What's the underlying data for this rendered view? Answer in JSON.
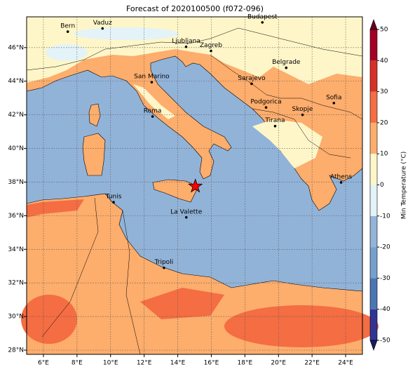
{
  "title": "Forecast of 2020100500 (f072-096)",
  "map": {
    "xlim": [
      5,
      25
    ],
    "ylim": [
      27.75,
      47.83
    ],
    "grid": true,
    "xticks": [
      {
        "value": 6,
        "label": "6°E"
      },
      {
        "value": 8,
        "label": "8°E"
      },
      {
        "value": 10,
        "label": "10°E"
      },
      {
        "value": 12,
        "label": "12°E"
      },
      {
        "value": 14,
        "label": "14°E"
      },
      {
        "value": 16,
        "label": "16°E"
      },
      {
        "value": 18,
        "label": "18°E"
      },
      {
        "value": 20,
        "label": "20°E"
      },
      {
        "value": 22,
        "label": "22°E"
      },
      {
        "value": 24,
        "label": "24°E"
      }
    ],
    "yticks": [
      {
        "value": 28,
        "label": "28°N"
      },
      {
        "value": 30,
        "label": "30°N"
      },
      {
        "value": 32,
        "label": "32°N"
      },
      {
        "value": 34,
        "label": "34°N"
      },
      {
        "value": 36,
        "label": "36°N"
      },
      {
        "value": 38,
        "label": "38°N"
      },
      {
        "value": 40,
        "label": "40°N"
      },
      {
        "value": 42,
        "label": "42°N"
      },
      {
        "value": 44,
        "label": "44°N"
      },
      {
        "value": 46,
        "label": "46°N"
      }
    ]
  },
  "cities": [
    {
      "name": "Bern",
      "lon": 7.45,
      "lat": 46.95
    },
    {
      "name": "Vaduz",
      "lon": 9.52,
      "lat": 47.14
    },
    {
      "name": "Budapest",
      "lon": 19.04,
      "lat": 47.5
    },
    {
      "name": "Ljubljana",
      "lon": 14.5,
      "lat": 46.05
    },
    {
      "name": "Zagreb",
      "lon": 15.98,
      "lat": 45.8
    },
    {
      "name": "San Marino",
      "lon": 12.45,
      "lat": 43.94
    },
    {
      "name": "Belgrade",
      "lon": 20.46,
      "lat": 44.8
    },
    {
      "name": "Sarajevo",
      "lon": 18.4,
      "lat": 43.85
    },
    {
      "name": "Sofia",
      "lon": 23.3,
      "lat": 42.7
    },
    {
      "name": "Podgorica",
      "lon": 19.26,
      "lat": 42.44
    },
    {
      "name": "Skopje",
      "lon": 21.43,
      "lat": 42.0
    },
    {
      "name": "Roma",
      "lon": 12.5,
      "lat": 41.9
    },
    {
      "name": "Tirana",
      "lon": 19.8,
      "lat": 41.33
    },
    {
      "name": "Athens",
      "lon": 23.73,
      "lat": 37.98
    },
    {
      "name": "Tunis",
      "lon": 10.18,
      "lat": 36.8
    },
    {
      "name": "La Valette",
      "lon": 14.51,
      "lat": 35.9
    },
    {
      "name": "Tripoli",
      "lon": 13.18,
      "lat": 32.9
    }
  ],
  "marker": {
    "lon": 15.05,
    "lat": 37.75,
    "color": "#ff0000"
  },
  "colorbar": {
    "label": "Min Temperature (°C)",
    "ticks": [
      -50,
      -40,
      -30,
      -20,
      -10,
      0,
      10,
      20,
      30,
      40,
      50
    ],
    "colors": [
      "#313695",
      "#4a76b4",
      "#75a0cc",
      "#93b3d8",
      "#e3f3f8",
      "#fef6c8",
      "#fdad6c",
      "#f46d43",
      "#d73027",
      "#a50026"
    ],
    "under_color": "#1a1a60",
    "over_color": "#67001f"
  }
}
